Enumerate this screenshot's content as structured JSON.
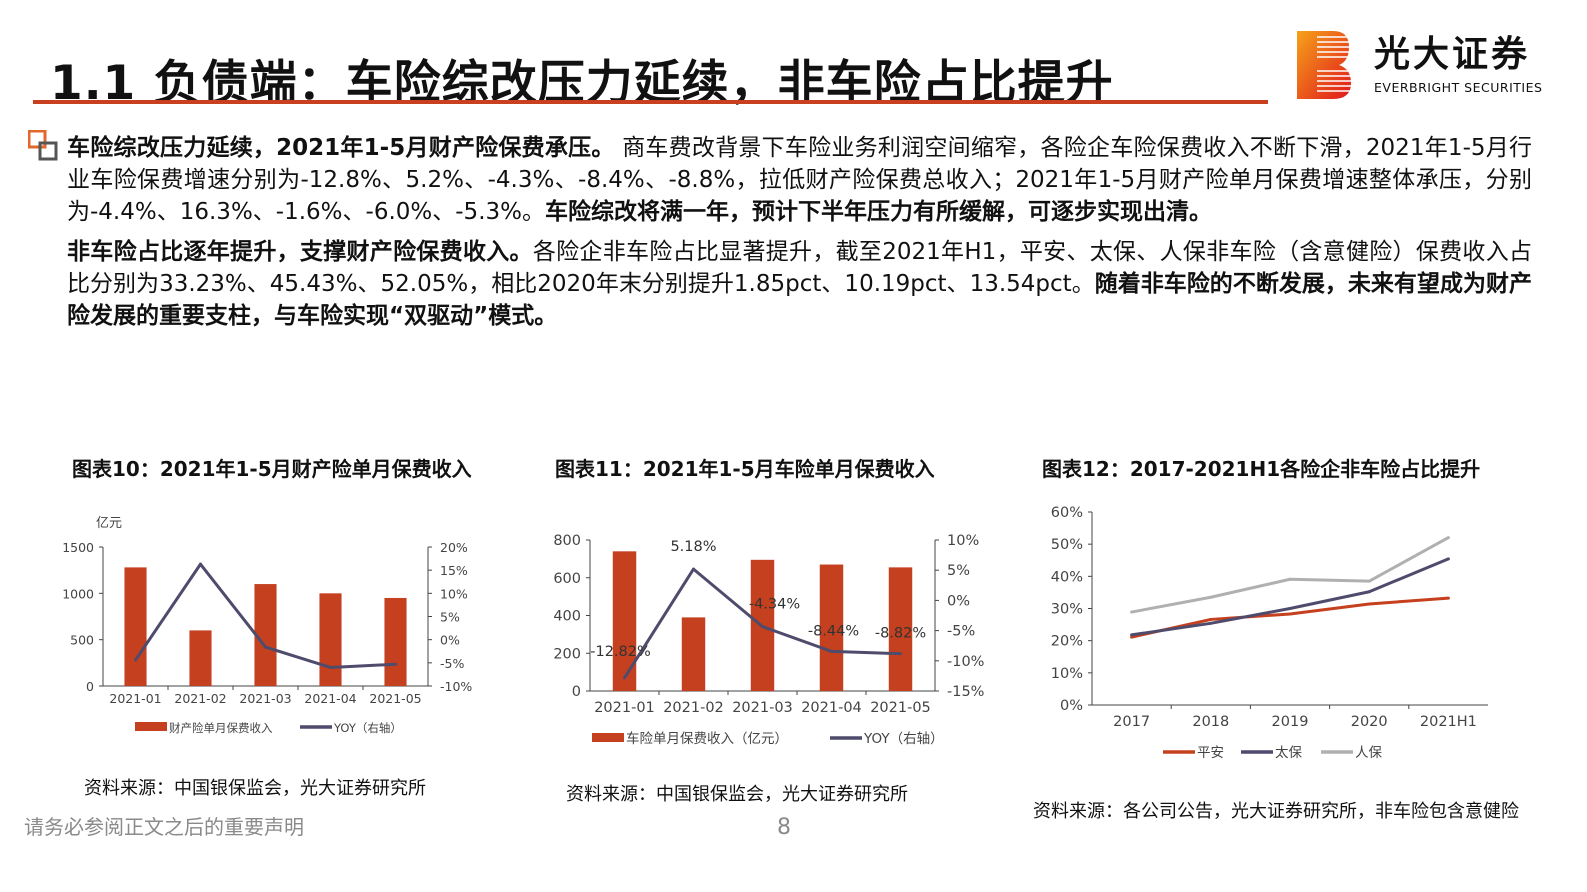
{
  "slide": {
    "title": "1.1 负债端：车险综改压力延续，非车险占比提升",
    "logo": {
      "cn": "光大证券",
      "en": "EVERBRIGHT SECURITIES"
    },
    "paragraphs": [
      [
        {
          "text": "车险综改压力延续，2021年1-5月财产险保费承压。",
          "bold": true
        },
        {
          "text": " 商车费改背景下车险业务利润空间缩窄，各险企车险保费收入不断下滑，2021年1-5月行业车险保费增速分别为-12.8%、5.2%、-4.3%、-8.4%、-8.8%，拉低财产险保费总收入；2021年1-5月财产险单月保费增速整体承压，分别为-4.4%、16.3%、-1.6%、-6.0%、-5.3%。",
          "bold": false
        },
        {
          "text": "车险综改将满一年，预计下半年压力有所缓解，可逐步实现出清。",
          "bold": true
        }
      ],
      [
        {
          "text": "非车险占比逐年提升，支撑财产险保费收入。",
          "bold": true
        },
        {
          "text": "各险企非车险占比显著提升，截至2021年H1，平安、太保、人保非车险（含意健险）保费收入占比分别为33.23%、45.43%、52.05%，相比2020年末分别提升1.85pct、10.19pct、13.54pct。",
          "bold": false
        },
        {
          "text": "随着非车险的不断发展，未来有望成为财产险发展的重要支柱，与车险实现“双驱动”模式。",
          "bold": true
        }
      ]
    ],
    "footer_note": "请务必参阅正文之后的重要声明",
    "page_number": "8",
    "colors": {
      "accent": "#c8401f",
      "bar": "#c5401f",
      "line_dark": "#4e4b6c",
      "line_gray": "#b0b0b0"
    }
  },
  "chart_data": [
    {
      "type": "bar+line",
      "title": "图表10：2021年1-5月财产险单月保费收入",
      "ylabel": "亿元",
      "categories": [
        "2021-01",
        "2021-02",
        "2021-03",
        "2021-04",
        "2021-05"
      ],
      "ylim": [
        0,
        1500
      ],
      "yticks": [
        "0",
        "500",
        "1000",
        "1500"
      ],
      "y2lim": [
        -10,
        20
      ],
      "y2ticks": [
        "-10%",
        "-5%",
        "0%",
        "5%",
        "10%",
        "15%",
        "20%"
      ],
      "series": [
        {
          "name": "财产险单月保费收入",
          "kind": "bar",
          "axis": "left",
          "values": [
            1280,
            600,
            1100,
            1000,
            950
          ]
        },
        {
          "name": "YOY（右轴）",
          "kind": "line",
          "axis": "right",
          "values": [
            -4.4,
            16.3,
            -1.6,
            -6.0,
            -5.3
          ]
        }
      ],
      "legend": "bottom",
      "grid": false,
      "source": "资料来源：中国银保监会，光大证券研究所"
    },
    {
      "type": "bar+line",
      "title": "图表11：2021年1-5月车险单月保费收入",
      "categories": [
        "2021-01",
        "2021-02",
        "2021-03",
        "2021-04",
        "2021-05"
      ],
      "ylim": [
        0,
        800
      ],
      "yticks": [
        "0",
        "200",
        "400",
        "600",
        "800"
      ],
      "y2lim": [
        -15,
        10
      ],
      "y2ticks": [
        "-15%",
        "-10%",
        "-5%",
        "0%",
        "5%",
        "10%"
      ],
      "series": [
        {
          "name": "车险单月保费收入（亿元）",
          "kind": "bar",
          "axis": "left",
          "values": [
            740,
            390,
            695,
            670,
            655
          ]
        },
        {
          "name": "YOY（右轴）",
          "kind": "line",
          "axis": "right",
          "values": [
            -12.82,
            5.18,
            -4.34,
            -8.44,
            -8.82
          ]
        }
      ],
      "data_labels": [
        "-12.82%",
        "5.18%",
        "-4.34%",
        "-8.44%",
        "-8.82%"
      ],
      "legend": "bottom",
      "grid": false,
      "source": "资料来源：中国银保监会，光大证券研究所"
    },
    {
      "type": "line",
      "title": "图表12：2017-2021H1各险企非车险占比提升",
      "categories": [
        "2017",
        "2018",
        "2019",
        "2020",
        "2021H1"
      ],
      "ylim": [
        0,
        60
      ],
      "yticks": [
        "0%",
        "10%",
        "20%",
        "30%",
        "40%",
        "50%",
        "60%"
      ],
      "series": [
        {
          "name": "平安",
          "values": [
            21.1,
            26.6,
            28.3,
            31.4,
            33.23
          ],
          "color": "#c5401f"
        },
        {
          "name": "太保",
          "values": [
            21.8,
            25.4,
            30.0,
            35.2,
            45.43
          ],
          "color": "#4e4b6c"
        },
        {
          "name": "人保",
          "values": [
            28.9,
            33.5,
            39.1,
            38.5,
            52.05
          ],
          "color": "#b0b0b0"
        }
      ],
      "legend": "bottom",
      "grid": false,
      "source": "资料来源：各公司公告，光大证券研究所，非车险包含意健险"
    }
  ]
}
